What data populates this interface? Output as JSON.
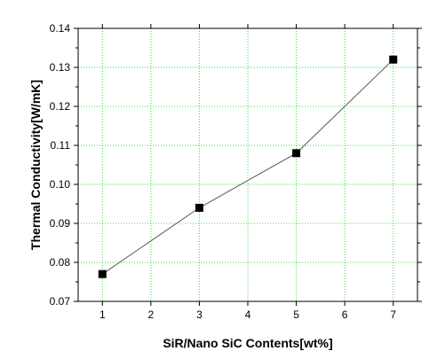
{
  "chart_data": {
    "type": "line",
    "xlabel": "SiR/Nano SiC Contents[wt%]",
    "ylabel": "Thermal Conductivity[W/mK]",
    "xlim": [
      0.5,
      7.5
    ],
    "ylim": [
      0.07,
      0.14
    ],
    "x_ticks": [
      "1",
      "2",
      "3",
      "4",
      "5",
      "6",
      "7"
    ],
    "y_ticks": [
      "0.07",
      "0.08",
      "0.09",
      "0.10",
      "0.11",
      "0.12",
      "0.13",
      "0.14"
    ],
    "grid": true,
    "marker": "square",
    "series": [
      {
        "x": [
          1,
          3,
          5,
          7
        ],
        "y": [
          0.077,
          0.094,
          0.108,
          0.132
        ]
      }
    ],
    "colors": {
      "line": "#555555",
      "marker": "#000000",
      "grid": "#33dd33",
      "axis": "#000000"
    }
  }
}
